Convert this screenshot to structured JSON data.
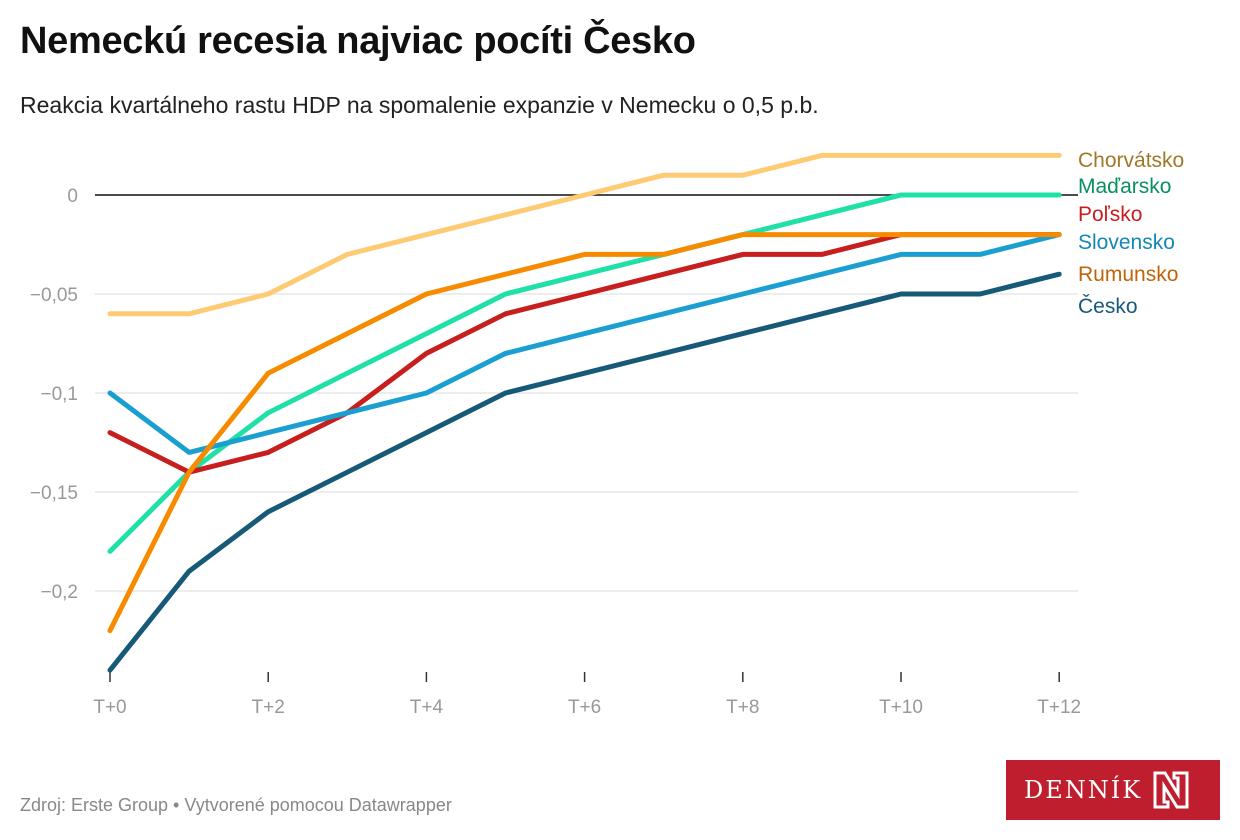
{
  "header": {
    "title": "Nemeckú recesia najviac pocíti Česko",
    "subtitle": "Reakcia kvartálneho rastu HDP na spomalenie expanzie v Nemecku o 0,5 p.b."
  },
  "footer": {
    "source": "Zdroj: Erste Group • Vytvorené pomocou Datawrapper",
    "logo_text": "DENNÍK N"
  },
  "chart_data": {
    "type": "line",
    "title": "Nemeckú recesia najviac pocíti Česko",
    "subtitle": "Reakcia kvartálneho rastu HDP na spomalenie expanzie v Nemecku o 0,5 p.b.",
    "xlabel": "",
    "ylabel": "",
    "x": [
      0,
      1,
      2,
      3,
      4,
      5,
      6,
      7,
      8,
      9,
      10,
      11,
      12
    ],
    "x_ticks": [
      0,
      2,
      4,
      6,
      8,
      10,
      12
    ],
    "x_tick_labels": [
      "T+0",
      "T+2",
      "T+4",
      "T+6",
      "T+8",
      "T+10",
      "T+12"
    ],
    "y_ticks": [
      0,
      -0.05,
      -0.1,
      -0.15,
      -0.2
    ],
    "y_tick_labels": [
      "0",
      "−0,05",
      "−0,1",
      "−0,15",
      "−0,2"
    ],
    "ylim": [
      -0.24,
      0.02
    ],
    "grid": true,
    "legend": "direct labels right",
    "series": [
      {
        "name": "Chorvátsko",
        "color": "#fecb74",
        "label_color": "#a0782a",
        "values": [
          -0.06,
          -0.06,
          -0.05,
          -0.03,
          -0.02,
          -0.01,
          0,
          0.01,
          0.01,
          0.02,
          0.02,
          0.02,
          0.02
        ]
      },
      {
        "name": "Maďarsko",
        "color": "#1fe0a6",
        "label_color": "#0a8f5e",
        "values": [
          -0.18,
          -0.14,
          -0.11,
          -0.09,
          -0.07,
          -0.05,
          -0.04,
          -0.03,
          -0.02,
          -0.01,
          0,
          0,
          0
        ]
      },
      {
        "name": "Poľsko",
        "color": "#c71e1e",
        "label_color": "#c71e1e",
        "values": [
          -0.12,
          -0.14,
          -0.13,
          -0.11,
          -0.08,
          -0.06,
          -0.05,
          -0.04,
          -0.03,
          -0.03,
          -0.02,
          -0.02,
          -0.02
        ]
      },
      {
        "name": "Slovensko",
        "color": "#1a9fd0",
        "label_color": "#1487b8",
        "values": [
          -0.1,
          -0.13,
          -0.12,
          -0.11,
          -0.1,
          -0.08,
          -0.07,
          -0.06,
          -0.05,
          -0.04,
          -0.03,
          -0.03,
          -0.02
        ]
      },
      {
        "name": "Rumunsko",
        "color": "#f78b00",
        "label_color": "#c0640a",
        "values": [
          -0.22,
          -0.14,
          -0.09,
          -0.07,
          -0.05,
          -0.04,
          -0.03,
          -0.03,
          -0.02,
          -0.02,
          -0.02,
          -0.02,
          -0.02
        ]
      },
      {
        "name": "Česko",
        "color": "#165a78",
        "label_color": "#165a78",
        "values": [
          -0.24,
          -0.19,
          -0.16,
          -0.14,
          -0.12,
          -0.1,
          -0.09,
          -0.08,
          -0.07,
          -0.06,
          -0.05,
          -0.05,
          -0.04
        ]
      }
    ]
  }
}
